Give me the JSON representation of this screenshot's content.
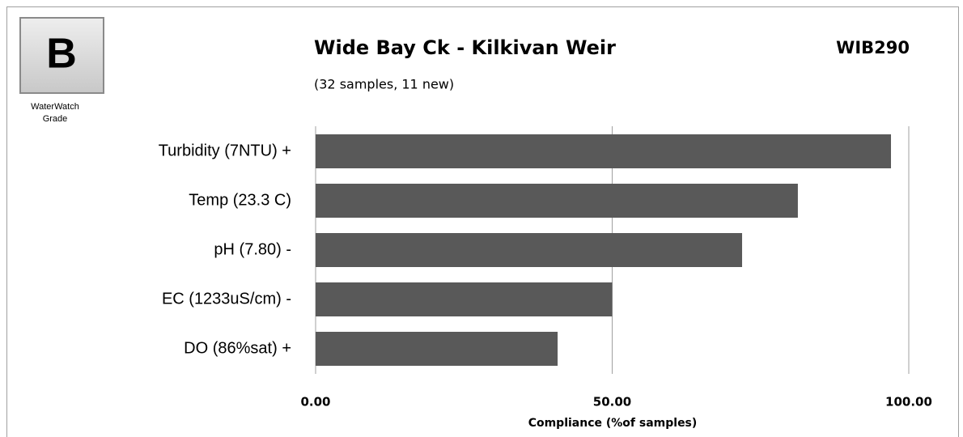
{
  "grade": {
    "letter": "B",
    "caption": [
      "WaterWatch",
      "Grade"
    ]
  },
  "chart_data": {
    "type": "bar",
    "orientation": "horizontal",
    "title": "Wide Bay Ck - Kilkivan Weir",
    "subtitle": "(32 samples, 11 new)",
    "annotations": [
      "WIB290"
    ],
    "x_label": "Compliance (%of samples)",
    "categories": [
      "Turbidity (7NTU) +",
      "Temp (23.3 C)",
      "pH (7.80) -",
      "EC (1233uS/cm) -",
      "DO (86%sat) +"
    ],
    "values": [
      97,
      81.3,
      71.9,
      50,
      40.8
    ],
    "color": "#595959",
    "xlim": [
      0,
      100
    ],
    "xticks": [
      {
        "value": 0,
        "label": "0.00"
      },
      {
        "value": 50,
        "label": "50.00"
      },
      {
        "value": 100,
        "label": "100.00"
      }
    ],
    "grid": true
  }
}
